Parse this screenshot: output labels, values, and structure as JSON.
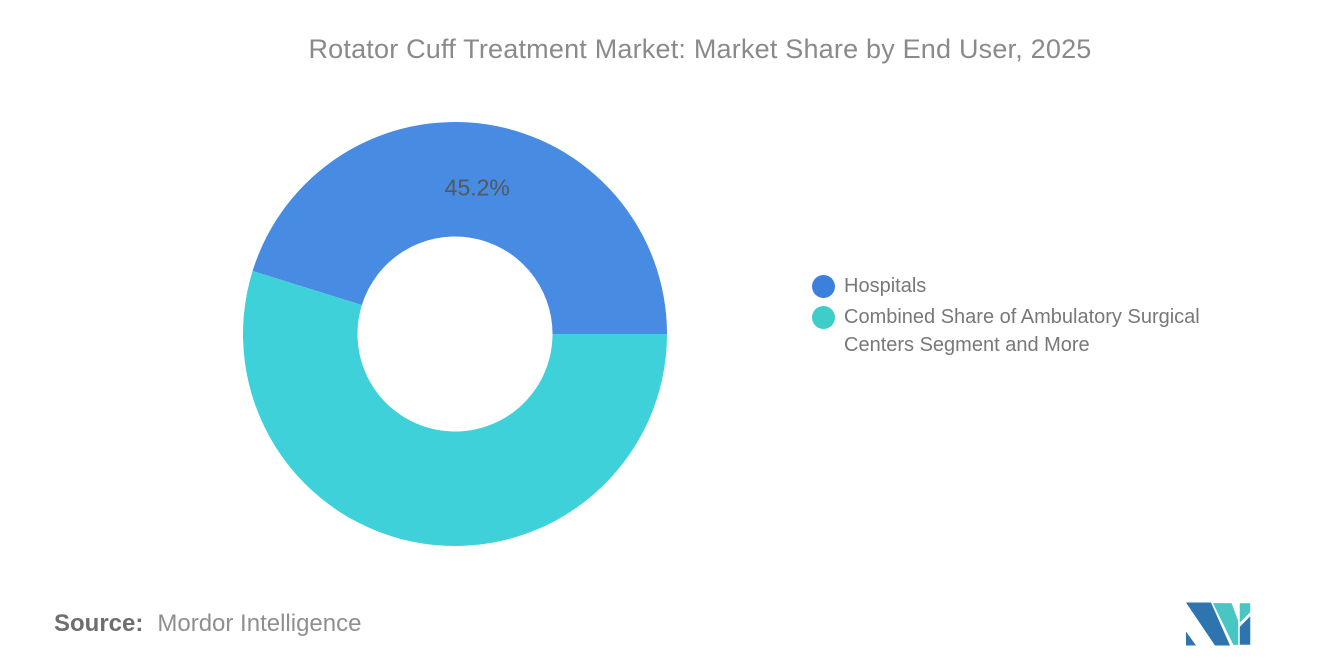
{
  "title": "Rotator Cuff Treatment Market: Market Share by End User, 2025",
  "chart_data": {
    "type": "pie",
    "subtype": "donut",
    "title": "Rotator Cuff Treatment Market: Market Share by End User, 2025",
    "unit": "%",
    "series": [
      {
        "name": "Hospitals",
        "value": 45.2,
        "color": "#478BE2",
        "data_label": "45.2%"
      },
      {
        "name": "Combined Share of Ambulatory Surgical Centers Segment and More",
        "value": 54.8,
        "color": "#3FD1DA",
        "data_label": ""
      }
    ],
    "start_angle_deg": 0,
    "direction": "ccw",
    "inner_radius_ratio": 0.46,
    "legend_position": "right",
    "data_label_color": "#55585C",
    "background": "#FFFFFF"
  },
  "legend": {
    "items": [
      {
        "label": "Hospitals",
        "color": "#3C80DE"
      },
      {
        "label": "Combined Share of Ambulatory Surgical Centers Segment and More",
        "color": "#3ECDC9"
      }
    ]
  },
  "source": {
    "label": "Source:",
    "value": "Mordor Intelligence"
  },
  "logo": {
    "name": "mordor-intelligence-logo",
    "colors": {
      "blue": "#2E74AE",
      "teal": "#49C6C1"
    }
  },
  "colors": {
    "title_text": "#8A8A8A",
    "legend_text": "#76787A",
    "source_label_text": "#6E6E6E",
    "source_value_text": "#8F8F8F"
  }
}
